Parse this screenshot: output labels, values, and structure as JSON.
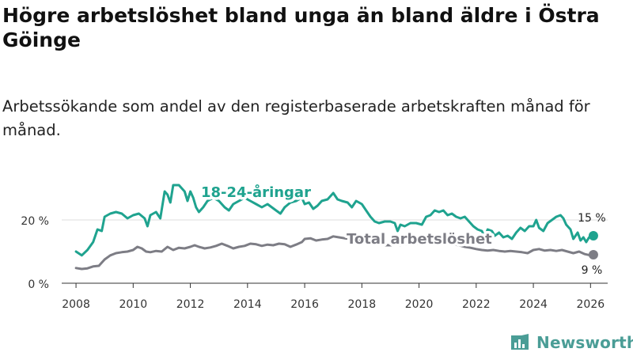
{
  "title": "Högre arbetslöshet bland unga än bland äldre i Östra Göinge",
  "subtitle": "Arbetssökande som andel av den registerbaserade arbetskraften månad för månad.",
  "brand": "Newsworthy",
  "colors": {
    "youth": "#1fa38f",
    "total": "#7d7d85",
    "axis": "#333333",
    "grid": "#dddddd"
  },
  "chart_data": {
    "type": "line",
    "x_ticks": [
      2008,
      2010,
      2012,
      2014,
      2016,
      2018,
      2020,
      2022,
      2024,
      2026
    ],
    "x_tick_labels": [
      "2008",
      "2010",
      "2012",
      "2014",
      "2016",
      "2018",
      "2020",
      "2022",
      "2024",
      "2026"
    ],
    "xlim": [
      2007.5,
      2026.6
    ],
    "ylim": [
      0,
      35
    ],
    "y_ticks": [
      0,
      20
    ],
    "y_tick_labels": [
      "0 %",
      "20 %"
    ],
    "series": [
      {
        "name": "18-24-åringar",
        "label": "18-24-åringar",
        "end_label": "15 %",
        "points": [
          [
            2008.0,
            10
          ],
          [
            2008.2,
            8.8
          ],
          [
            2008.4,
            10.5
          ],
          [
            2008.6,
            13
          ],
          [
            2008.75,
            17
          ],
          [
            2008.9,
            16.5
          ],
          [
            2009.0,
            21
          ],
          [
            2009.2,
            22
          ],
          [
            2009.4,
            22.5
          ],
          [
            2009.6,
            22
          ],
          [
            2009.8,
            20.5
          ],
          [
            2010.0,
            21.5
          ],
          [
            2010.2,
            22
          ],
          [
            2010.4,
            20.5
          ],
          [
            2010.5,
            18
          ],
          [
            2010.6,
            21.5
          ],
          [
            2010.8,
            22.5
          ],
          [
            2010.95,
            20.5
          ],
          [
            2011.1,
            29
          ],
          [
            2011.2,
            28
          ],
          [
            2011.3,
            25.5
          ],
          [
            2011.4,
            31
          ],
          [
            2011.6,
            31
          ],
          [
            2011.8,
            29
          ],
          [
            2011.9,
            26
          ],
          [
            2012.0,
            29
          ],
          [
            2012.1,
            27
          ],
          [
            2012.2,
            24
          ],
          [
            2012.3,
            22.5
          ],
          [
            2012.45,
            24
          ],
          [
            2012.6,
            26
          ],
          [
            2012.8,
            27
          ],
          [
            2013.0,
            26
          ],
          [
            2013.2,
            24
          ],
          [
            2013.35,
            23
          ],
          [
            2013.5,
            25
          ],
          [
            2013.7,
            26
          ],
          [
            2013.9,
            27
          ],
          [
            2014.1,
            26
          ],
          [
            2014.3,
            25
          ],
          [
            2014.5,
            24
          ],
          [
            2014.7,
            25
          ],
          [
            2014.85,
            24
          ],
          [
            2015.0,
            23
          ],
          [
            2015.15,
            22
          ],
          [
            2015.3,
            24
          ],
          [
            2015.5,
            25.5
          ],
          [
            2015.7,
            26
          ],
          [
            2015.9,
            27
          ],
          [
            2016.0,
            25
          ],
          [
            2016.15,
            25.5
          ],
          [
            2016.3,
            23.5
          ],
          [
            2016.45,
            24.5
          ],
          [
            2016.6,
            26
          ],
          [
            2016.8,
            26.5
          ],
          [
            2017.0,
            28.5
          ],
          [
            2017.15,
            26.5
          ],
          [
            2017.3,
            26
          ],
          [
            2017.5,
            25.5
          ],
          [
            2017.65,
            24
          ],
          [
            2017.8,
            26
          ],
          [
            2018.0,
            25
          ],
          [
            2018.15,
            23
          ],
          [
            2018.3,
            21
          ],
          [
            2018.45,
            19.5
          ],
          [
            2018.6,
            19
          ],
          [
            2018.8,
            19.5
          ],
          [
            2019.0,
            19.5
          ],
          [
            2019.15,
            19
          ],
          [
            2019.25,
            16.5
          ],
          [
            2019.35,
            18.5
          ],
          [
            2019.5,
            18
          ],
          [
            2019.7,
            19
          ],
          [
            2019.9,
            19
          ],
          [
            2020.1,
            18.5
          ],
          [
            2020.25,
            21
          ],
          [
            2020.4,
            21.5
          ],
          [
            2020.55,
            23
          ],
          [
            2020.7,
            22.5
          ],
          [
            2020.85,
            23
          ],
          [
            2021.0,
            21.5
          ],
          [
            2021.15,
            22
          ],
          [
            2021.3,
            21
          ],
          [
            2021.45,
            20.5
          ],
          [
            2021.6,
            21
          ],
          [
            2021.75,
            19.5
          ],
          [
            2021.9,
            18
          ],
          [
            2022.05,
            17
          ],
          [
            2022.2,
            16.5
          ],
          [
            2022.3,
            14.5
          ],
          [
            2022.4,
            17
          ],
          [
            2022.55,
            16.5
          ],
          [
            2022.65,
            15
          ],
          [
            2022.8,
            16
          ],
          [
            2022.95,
            14.5
          ],
          [
            2023.1,
            15
          ],
          [
            2023.25,
            14
          ],
          [
            2023.4,
            16
          ],
          [
            2023.55,
            17.5
          ],
          [
            2023.7,
            16.5
          ],
          [
            2023.85,
            18
          ],
          [
            2024.0,
            18
          ],
          [
            2024.1,
            20
          ],
          [
            2024.2,
            17.5
          ],
          [
            2024.35,
            16.5
          ],
          [
            2024.5,
            19
          ],
          [
            2024.65,
            20
          ],
          [
            2024.8,
            21
          ],
          [
            2024.95,
            21.5
          ],
          [
            2025.05,
            20.5
          ],
          [
            2025.15,
            18.5
          ],
          [
            2025.3,
            17
          ],
          [
            2025.4,
            14
          ],
          [
            2025.55,
            16
          ],
          [
            2025.65,
            13.5
          ],
          [
            2025.75,
            14.5
          ],
          [
            2025.85,
            13
          ],
          [
            2025.95,
            14.5
          ],
          [
            2026.1,
            15
          ]
        ]
      },
      {
        "name": "Total arbetslöshet",
        "label": "Total arbetslöshet",
        "end_label": "9 %",
        "points": [
          [
            2008.0,
            4.8
          ],
          [
            2008.2,
            4.5
          ],
          [
            2008.4,
            4.7
          ],
          [
            2008.6,
            5.3
          ],
          [
            2008.8,
            5.5
          ],
          [
            2009.0,
            7.5
          ],
          [
            2009.2,
            8.8
          ],
          [
            2009.4,
            9.5
          ],
          [
            2009.6,
            9.8
          ],
          [
            2009.8,
            10
          ],
          [
            2010.0,
            10.5
          ],
          [
            2010.15,
            11.5
          ],
          [
            2010.3,
            11
          ],
          [
            2010.45,
            10
          ],
          [
            2010.6,
            9.8
          ],
          [
            2010.8,
            10.2
          ],
          [
            2011.0,
            10
          ],
          [
            2011.2,
            11.5
          ],
          [
            2011.4,
            10.5
          ],
          [
            2011.6,
            11.2
          ],
          [
            2011.8,
            11
          ],
          [
            2012.0,
            11.5
          ],
          [
            2012.15,
            12
          ],
          [
            2012.3,
            11.5
          ],
          [
            2012.5,
            11
          ],
          [
            2012.7,
            11.3
          ],
          [
            2012.9,
            11.8
          ],
          [
            2013.1,
            12.5
          ],
          [
            2013.3,
            11.8
          ],
          [
            2013.5,
            11
          ],
          [
            2013.7,
            11.5
          ],
          [
            2013.9,
            11.8
          ],
          [
            2014.1,
            12.5
          ],
          [
            2014.3,
            12.3
          ],
          [
            2014.5,
            11.8
          ],
          [
            2014.7,
            12.2
          ],
          [
            2014.9,
            12
          ],
          [
            2015.1,
            12.5
          ],
          [
            2015.3,
            12.3
          ],
          [
            2015.5,
            11.5
          ],
          [
            2015.7,
            12.2
          ],
          [
            2015.9,
            13
          ],
          [
            2016.0,
            14
          ],
          [
            2016.2,
            14.2
          ],
          [
            2016.4,
            13.5
          ],
          [
            2016.6,
            13.8
          ],
          [
            2016.8,
            14
          ],
          [
            2017.0,
            14.8
          ],
          [
            2017.2,
            14.5
          ],
          [
            2017.4,
            14.2
          ],
          [
            2017.6,
            14
          ],
          [
            2017.8,
            13.5
          ],
          [
            2018.0,
            13.3
          ],
          [
            2018.2,
            13
          ],
          [
            2018.4,
            12.5
          ],
          [
            2018.6,
            12.2
          ],
          [
            2018.8,
            12
          ],
          [
            2019.0,
            12
          ],
          [
            2019.2,
            12.2
          ],
          [
            2019.4,
            12
          ],
          [
            2019.6,
            12.5
          ],
          [
            2019.8,
            12.3
          ],
          [
            2020.0,
            12.5
          ],
          [
            2020.2,
            13
          ],
          [
            2020.4,
            13.5
          ],
          [
            2020.6,
            13.3
          ],
          [
            2020.8,
            13
          ],
          [
            2021.0,
            12.5
          ],
          [
            2021.2,
            12.3
          ],
          [
            2021.4,
            12
          ],
          [
            2021.6,
            11.5
          ],
          [
            2021.8,
            11.2
          ],
          [
            2022.0,
            10.8
          ],
          [
            2022.2,
            10.5
          ],
          [
            2022.4,
            10.3
          ],
          [
            2022.6,
            10.5
          ],
          [
            2022.8,
            10.2
          ],
          [
            2023.0,
            10
          ],
          [
            2023.2,
            10.2
          ],
          [
            2023.4,
            10
          ],
          [
            2023.6,
            9.8
          ],
          [
            2023.8,
            9.5
          ],
          [
            2024.0,
            10.5
          ],
          [
            2024.2,
            10.8
          ],
          [
            2024.4,
            10.3
          ],
          [
            2024.6,
            10.5
          ],
          [
            2024.8,
            10.2
          ],
          [
            2025.0,
            10.5
          ],
          [
            2025.2,
            10
          ],
          [
            2025.4,
            9.5
          ],
          [
            2025.6,
            10
          ],
          [
            2025.8,
            9.2
          ],
          [
            2026.0,
            8.8
          ],
          [
            2026.1,
            9
          ]
        ]
      }
    ]
  }
}
